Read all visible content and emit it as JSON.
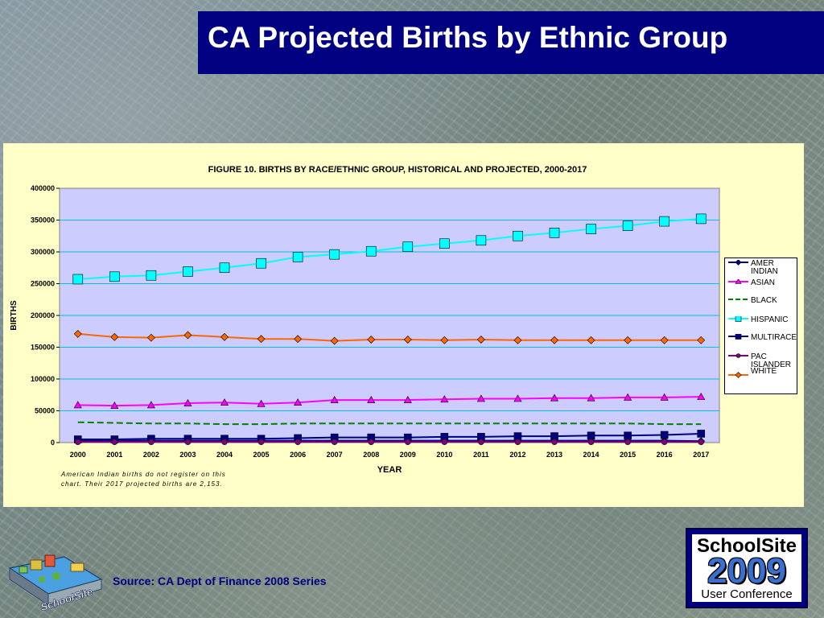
{
  "slide": {
    "title": "CA Projected Births by Ethnic Group",
    "source": "Source:  CA Dept of Finance  2008 Series",
    "footnote": "American Indian births do not register on this chart. Their 2017 projected births are 2,153.",
    "logo_right": {
      "line1": "SchoolSite",
      "line2": "2009",
      "line3": "User Conference"
    },
    "logo_left_text": "SchoolSite"
  },
  "colors": {
    "title_bg": "#000080",
    "chart_bg": "#ffffc8",
    "plot_bg": "#ccccff",
    "gridline": "#00c0e0",
    "source_text": "#000080"
  },
  "chart_data": {
    "type": "line",
    "title": "FIGURE 10. BIRTHS BY RACE/ETHNIC GROUP, HISTORICAL AND PROJECTED, 2000-2017",
    "xlabel": "YEAR",
    "ylabel": "BIRTHS",
    "ylim": [
      0,
      400000
    ],
    "yticks": [
      "0",
      "50000",
      "100000",
      "150000",
      "200000",
      "250000",
      "300000",
      "350000",
      "400000"
    ],
    "categories": [
      "2000",
      "2001",
      "2002",
      "2003",
      "2004",
      "2005",
      "2006",
      "2007",
      "2008",
      "2009",
      "2010",
      "2011",
      "2012",
      "2013",
      "2014",
      "2015",
      "2016",
      "2017"
    ],
    "grid": true,
    "legend_position": "right",
    "series": [
      {
        "name": "AMER INDIAN",
        "color": "#000080",
        "marker": "diamond",
        "values": [
          3000,
          3000,
          3000,
          3000,
          3000,
          3000,
          3000,
          3000,
          3000,
          3000,
          3000,
          3000,
          3000,
          3000,
          3000,
          3000,
          3000,
          2153
        ]
      },
      {
        "name": "ASIAN",
        "color": "#ff00ff",
        "marker": "triangle",
        "values": [
          59000,
          58000,
          59000,
          62000,
          63000,
          61000,
          63000,
          67000,
          67000,
          67000,
          68000,
          69000,
          69000,
          70000,
          70000,
          71000,
          71000,
          72000
        ]
      },
      {
        "name": "BLACK",
        "color": "#008000",
        "marker": "none",
        "dashed": true,
        "values": [
          32000,
          31000,
          30000,
          30000,
          29000,
          29000,
          30000,
          30000,
          30000,
          30000,
          30000,
          30000,
          30000,
          30000,
          30000,
          30000,
          29000,
          29000
        ]
      },
      {
        "name": "HISPANIC",
        "color": "#00ffff",
        "marker": "square",
        "values": [
          257000,
          261000,
          263000,
          269000,
          275000,
          282000,
          292000,
          296000,
          301000,
          308000,
          313000,
          318000,
          325000,
          330000,
          336000,
          341000,
          348000,
          352000
        ]
      },
      {
        "name": "MULTIRACE",
        "color": "#000080",
        "marker": "square",
        "values": [
          5000,
          5000,
          6000,
          6000,
          6000,
          6000,
          7000,
          8000,
          8000,
          8000,
          9000,
          9000,
          10000,
          10000,
          11000,
          11000,
          12000,
          14000
        ]
      },
      {
        "name": "PAC ISLANDER",
        "color": "#800080",
        "marker": "circle",
        "values": [
          1000,
          1000,
          1000,
          1000,
          1000,
          1000,
          1000,
          1000,
          1000,
          1000,
          1000,
          1000,
          1000,
          1000,
          1000,
          1000,
          1000,
          1000
        ]
      },
      {
        "name": "WHITE",
        "color": "#ff6600",
        "marker": "diamond",
        "values": [
          171000,
          166000,
          165000,
          169000,
          166000,
          163000,
          163000,
          160000,
          162000,
          162000,
          161000,
          162000,
          161000,
          161000,
          161000,
          161000,
          161000,
          161000
        ]
      }
    ]
  }
}
